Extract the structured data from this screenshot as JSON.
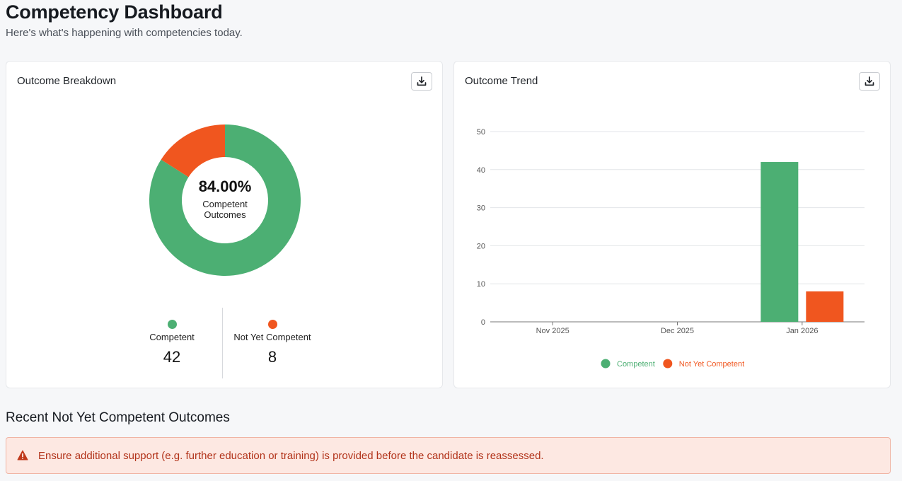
{
  "header": {
    "title": "Competency Dashboard",
    "subtitle": "Here's what's happening with competencies today."
  },
  "breakdown": {
    "title": "Outcome Breakdown",
    "download_icon": "download-icon",
    "center_value": "84.00%",
    "center_caption": "Competent Outcomes",
    "stats": [
      {
        "label": "Competent",
        "value": "42",
        "color": "#4caf73"
      },
      {
        "label": "Not Yet Competent",
        "value": "8",
        "color": "#f0561f"
      }
    ]
  },
  "trend": {
    "title": "Outcome Trend",
    "download_icon": "download-icon"
  },
  "chart_data": [
    {
      "type": "pie",
      "categories": [
        "Competent",
        "Not Yet Competent"
      ],
      "values": [
        42,
        8
      ],
      "colors": [
        "#4caf73",
        "#f0561f"
      ],
      "donut": true
    },
    {
      "type": "bar",
      "categories": [
        "Nov 2025",
        "Dec 2025",
        "Jan 2026"
      ],
      "series": [
        {
          "name": "Competent",
          "values": [
            0,
            0,
            42
          ],
          "color": "#4caf73"
        },
        {
          "name": "Not Yet Competent",
          "values": [
            0,
            0,
            8
          ],
          "color": "#f0561f"
        }
      ],
      "ylim": [
        0,
        50
      ],
      "yticks": [
        0,
        10,
        20,
        30,
        40,
        50
      ],
      "grid": true,
      "legend": "bottom-center"
    }
  ],
  "recent": {
    "title": "Recent Not Yet Competent Outcomes",
    "alert_icon": "warning-icon",
    "alert_text": "Ensure additional support (e.g. further education or training) is provided before the candidate is reassessed."
  }
}
